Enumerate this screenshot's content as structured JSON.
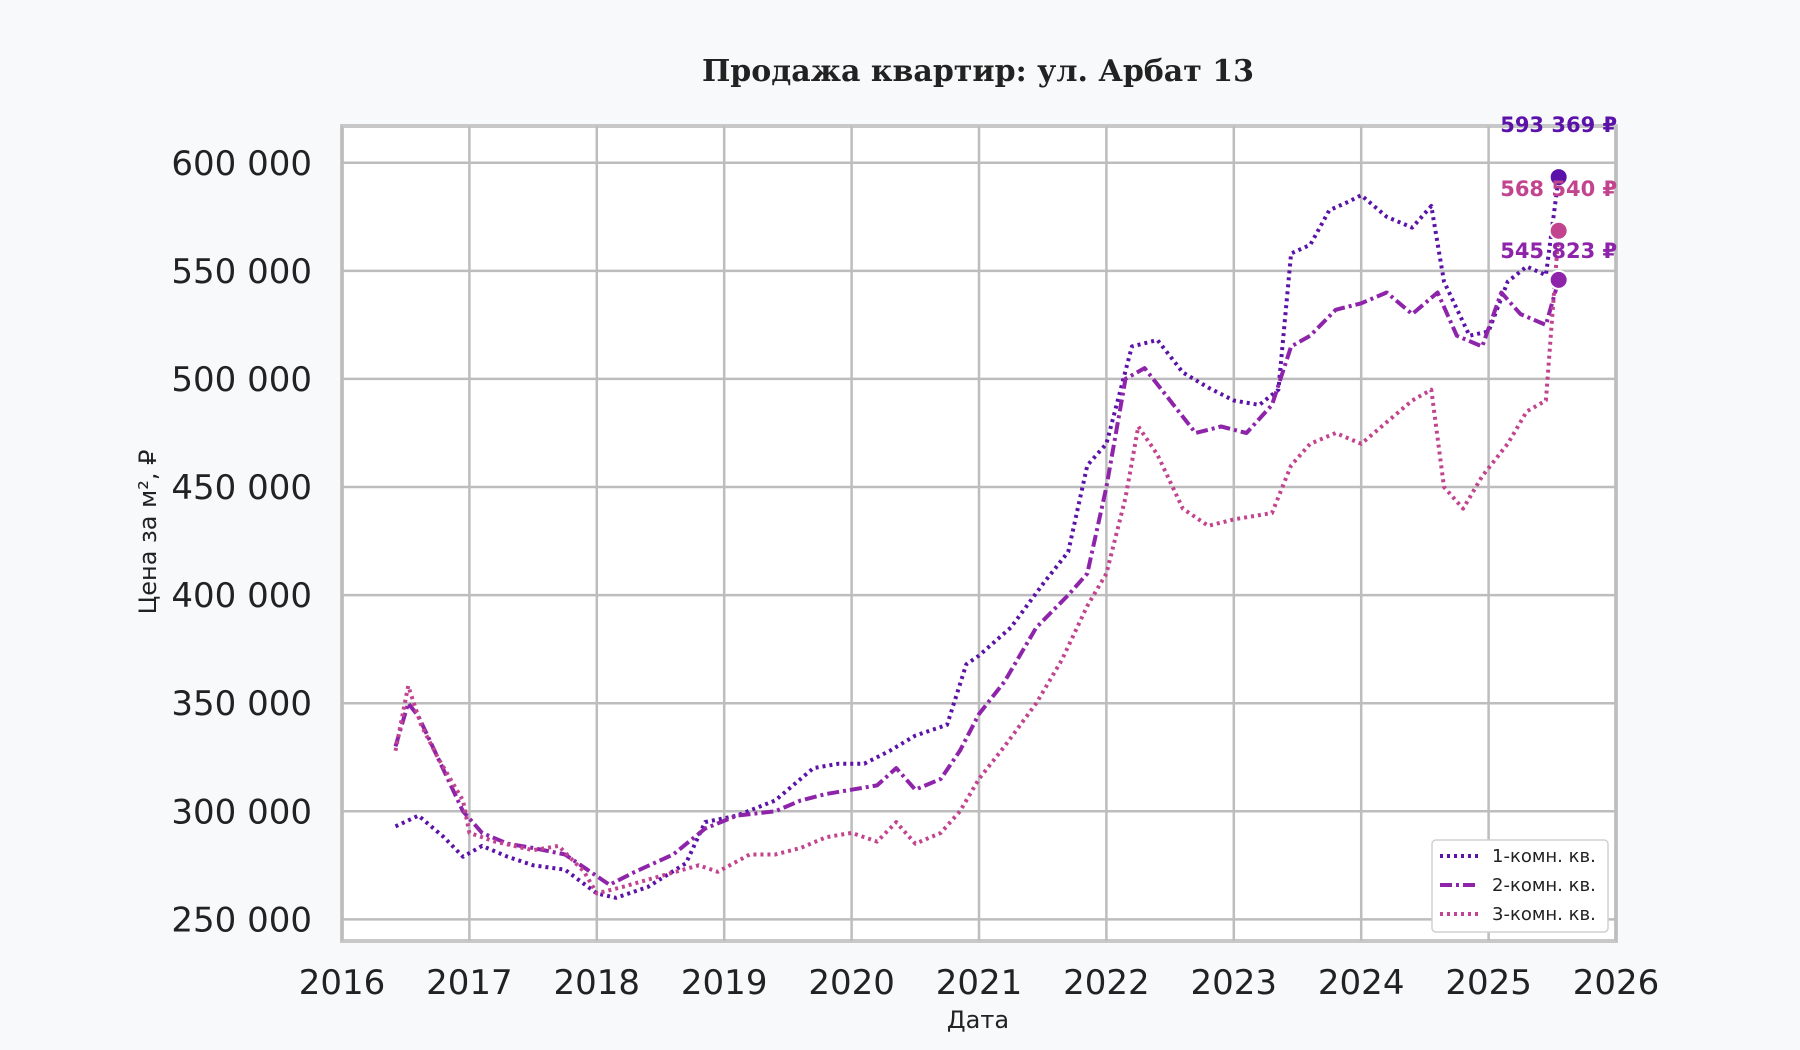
{
  "chart_data": {
    "type": "line",
    "title": "Продажа квартир: ул. Арбат 13",
    "xlabel": "Дата",
    "ylabel": "Цена за м², ₽",
    "xlim": [
      2016.0,
      2026.0
    ],
    "ylim": [
      240000,
      617000
    ],
    "x_ticks": [
      "2016",
      "2017",
      "2018",
      "2019",
      "2020",
      "2021",
      "2022",
      "2023",
      "2024",
      "2025",
      "2026"
    ],
    "y_ticks": [
      "250 000",
      "300 000",
      "350 000",
      "400 000",
      "450 000",
      "500 000",
      "550 000",
      "600 000"
    ],
    "grid": true,
    "legend_position": "bottom-right",
    "series": [
      {
        "name": "1-комн. кв.",
        "color": "#5b12a8",
        "style": "dotted",
        "end_value": 593369,
        "end_label": "593 369 ₽",
        "points": [
          [
            2016.42,
            293000
          ],
          [
            2016.6,
            298000
          ],
          [
            2016.8,
            288000
          ],
          [
            2016.95,
            279000
          ],
          [
            2017.1,
            284000
          ],
          [
            2017.3,
            279000
          ],
          [
            2017.5,
            275000
          ],
          [
            2017.75,
            273000
          ],
          [
            2018.0,
            262000
          ],
          [
            2018.15,
            260000
          ],
          [
            2018.4,
            265000
          ],
          [
            2018.7,
            276000
          ],
          [
            2018.85,
            295000
          ],
          [
            2019.1,
            298000
          ],
          [
            2019.4,
            305000
          ],
          [
            2019.7,
            320000
          ],
          [
            2019.9,
            322000
          ],
          [
            2020.1,
            322000
          ],
          [
            2020.3,
            328000
          ],
          [
            2020.5,
            335000
          ],
          [
            2020.75,
            340000
          ],
          [
            2020.9,
            368000
          ],
          [
            2021.0,
            372000
          ],
          [
            2021.25,
            385000
          ],
          [
            2021.5,
            405000
          ],
          [
            2021.7,
            420000
          ],
          [
            2021.85,
            460000
          ],
          [
            2022.0,
            470000
          ],
          [
            2022.2,
            515000
          ],
          [
            2022.4,
            518000
          ],
          [
            2022.6,
            503000
          ],
          [
            2022.8,
            496000
          ],
          [
            2023.0,
            490000
          ],
          [
            2023.2,
            488000
          ],
          [
            2023.35,
            495000
          ],
          [
            2023.45,
            558000
          ],
          [
            2023.6,
            562000
          ],
          [
            2023.75,
            578000
          ],
          [
            2023.9,
            582000
          ],
          [
            2024.0,
            585000
          ],
          [
            2024.2,
            575000
          ],
          [
            2024.4,
            570000
          ],
          [
            2024.55,
            580000
          ],
          [
            2024.65,
            545000
          ],
          [
            2024.85,
            520000
          ],
          [
            2025.0,
            522000
          ],
          [
            2025.15,
            545000
          ],
          [
            2025.3,
            552000
          ],
          [
            2025.45,
            548000
          ],
          [
            2025.55,
            593369
          ]
        ]
      },
      {
        "name": "2-комн. кв.",
        "color": "#8e24aa",
        "style": "dashdot",
        "end_value": 545823,
        "end_label": "545 823 ₽",
        "points": [
          [
            2016.42,
            330000
          ],
          [
            2016.52,
            350000
          ],
          [
            2016.6,
            344000
          ],
          [
            2016.75,
            325000
          ],
          [
            2016.95,
            300000
          ],
          [
            2017.1,
            290000
          ],
          [
            2017.3,
            285000
          ],
          [
            2017.5,
            283000
          ],
          [
            2017.75,
            280000
          ],
          [
            2017.95,
            272000
          ],
          [
            2018.1,
            266000
          ],
          [
            2018.3,
            272000
          ],
          [
            2018.6,
            280000
          ],
          [
            2018.85,
            292000
          ],
          [
            2019.1,
            298000
          ],
          [
            2019.4,
            300000
          ],
          [
            2019.6,
            305000
          ],
          [
            2019.8,
            308000
          ],
          [
            2020.0,
            310000
          ],
          [
            2020.2,
            312000
          ],
          [
            2020.35,
            320000
          ],
          [
            2020.5,
            310000
          ],
          [
            2020.7,
            315000
          ],
          [
            2020.85,
            328000
          ],
          [
            2021.0,
            345000
          ],
          [
            2021.2,
            360000
          ],
          [
            2021.45,
            385000
          ],
          [
            2021.7,
            400000
          ],
          [
            2021.85,
            410000
          ],
          [
            2022.0,
            450000
          ],
          [
            2022.15,
            500000
          ],
          [
            2022.3,
            505000
          ],
          [
            2022.5,
            490000
          ],
          [
            2022.7,
            475000
          ],
          [
            2022.9,
            478000
          ],
          [
            2023.1,
            475000
          ],
          [
            2023.3,
            488000
          ],
          [
            2023.45,
            515000
          ],
          [
            2023.6,
            520000
          ],
          [
            2023.8,
            532000
          ],
          [
            2024.0,
            535000
          ],
          [
            2024.2,
            540000
          ],
          [
            2024.4,
            530000
          ],
          [
            2024.6,
            540000
          ],
          [
            2024.75,
            520000
          ],
          [
            2024.95,
            515000
          ],
          [
            2025.1,
            540000
          ],
          [
            2025.25,
            530000
          ],
          [
            2025.45,
            525000
          ],
          [
            2025.55,
            545823
          ]
        ]
      },
      {
        "name": "3-комн. кв.",
        "color": "#c2448f",
        "style": "dotted",
        "end_value": 568540,
        "end_label": "568 540 ₽",
        "points": [
          [
            2016.42,
            328000
          ],
          [
            2016.52,
            358000
          ],
          [
            2016.62,
            340000
          ],
          [
            2016.75,
            325000
          ],
          [
            2016.95,
            305000
          ],
          [
            2017.0,
            290000
          ],
          [
            2017.2,
            286000
          ],
          [
            2017.5,
            282000
          ],
          [
            2017.7,
            284000
          ],
          [
            2017.9,
            272000
          ],
          [
            2018.0,
            262000
          ],
          [
            2018.2,
            265000
          ],
          [
            2018.5,
            270000
          ],
          [
            2018.8,
            275000
          ],
          [
            2018.95,
            272000
          ],
          [
            2019.2,
            280000
          ],
          [
            2019.4,
            280000
          ],
          [
            2019.6,
            283000
          ],
          [
            2019.8,
            288000
          ],
          [
            2020.0,
            290000
          ],
          [
            2020.2,
            286000
          ],
          [
            2020.35,
            295000
          ],
          [
            2020.5,
            285000
          ],
          [
            2020.7,
            290000
          ],
          [
            2020.85,
            300000
          ],
          [
            2021.0,
            315000
          ],
          [
            2021.2,
            330000
          ],
          [
            2021.45,
            350000
          ],
          [
            2021.65,
            370000
          ],
          [
            2021.85,
            395000
          ],
          [
            2022.0,
            410000
          ],
          [
            2022.15,
            445000
          ],
          [
            2022.25,
            478000
          ],
          [
            2022.4,
            465000
          ],
          [
            2022.6,
            440000
          ],
          [
            2022.8,
            432000
          ],
          [
            2023.0,
            435000
          ],
          [
            2023.3,
            438000
          ],
          [
            2023.45,
            460000
          ],
          [
            2023.6,
            470000
          ],
          [
            2023.8,
            475000
          ],
          [
            2024.0,
            470000
          ],
          [
            2024.2,
            480000
          ],
          [
            2024.4,
            490000
          ],
          [
            2024.55,
            495000
          ],
          [
            2024.65,
            450000
          ],
          [
            2024.8,
            440000
          ],
          [
            2024.95,
            455000
          ],
          [
            2025.15,
            470000
          ],
          [
            2025.3,
            485000
          ],
          [
            2025.45,
            490000
          ],
          [
            2025.55,
            568540
          ]
        ]
      }
    ]
  }
}
